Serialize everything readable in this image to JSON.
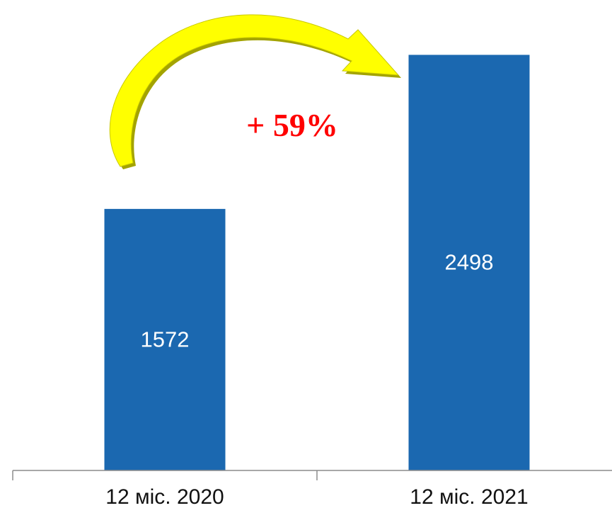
{
  "chart_data": {
    "type": "bar",
    "categories": [
      "12 міс. 2020",
      "12 міс. 2021"
    ],
    "values": [
      1572,
      2498
    ],
    "data_labels": [
      "1572",
      "2498"
    ],
    "annotation": "+ 59%",
    "title": "",
    "xlabel": "",
    "ylabel": "",
    "ylim": [
      0,
      2700
    ],
    "grid": false,
    "legend": "none"
  },
  "colors": {
    "bar": "#1b68b0",
    "annotation_text": "#ff0000",
    "arrow_fill": "#ffff00",
    "arrow_shadow": "#a3a300",
    "axis": "#8c8c8c"
  }
}
